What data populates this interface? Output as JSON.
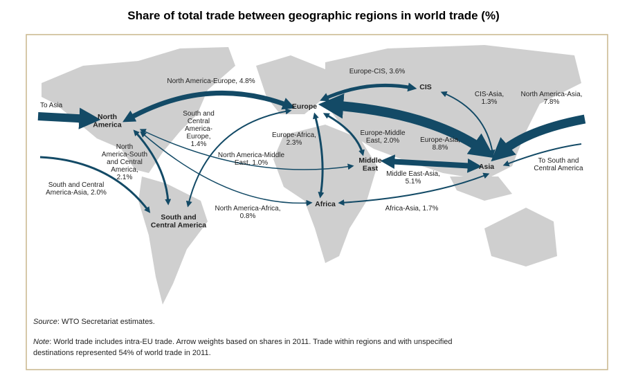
{
  "title": "Share of total trade between geographic regions in world trade (%)",
  "regions": [
    {
      "lines": [
        "North",
        "America"
      ]
    },
    {
      "lines": [
        "Europe"
      ]
    },
    {
      "lines": [
        "CIS"
      ]
    },
    {
      "lines": [
        "Middle",
        "East"
      ]
    },
    {
      "lines": [
        "Asia"
      ]
    },
    {
      "lines": [
        "Africa"
      ]
    },
    {
      "lines": [
        "South and",
        "Central America"
      ]
    }
  ],
  "flows": [
    {
      "lines": [
        "North America-Europe, 4.8%"
      ]
    },
    {
      "lines": [
        "To Asia"
      ]
    },
    {
      "lines": [
        "Europe-CIS, 3.6%"
      ]
    },
    {
      "lines": [
        "CIS-Asia,",
        "1.3%"
      ]
    },
    {
      "lines": [
        "North America-Asia,",
        "7.8%"
      ]
    },
    {
      "lines": [
        "South and",
        "Central",
        "America-",
        "Europe,",
        "1.4%"
      ]
    },
    {
      "lines": [
        "Europe-Africa,",
        "2.3%"
      ]
    },
    {
      "lines": [
        "Europe-Middle",
        "East, 2.0%"
      ]
    },
    {
      "lines": [
        "Europe-Asia,",
        "8.8%"
      ]
    },
    {
      "lines": [
        "North",
        "America-South",
        "and Central",
        "America,",
        "2.1%"
      ]
    },
    {
      "lines": [
        "North America-Middle",
        "East, 1.0%"
      ]
    },
    {
      "lines": [
        "To South and",
        "Central America"
      ]
    },
    {
      "lines": [
        "Middle East-Asia,",
        "5.1%"
      ]
    },
    {
      "lines": [
        "South and Central",
        "America-Asia, 2.0%"
      ]
    },
    {
      "lines": [
        "North America-Africa,",
        "0.8%"
      ]
    },
    {
      "lines": [
        "Africa-Asia, 1.7%"
      ]
    }
  ],
  "source": {
    "label": "Source",
    "text": ": WTO Secretariat estimates."
  },
  "note": {
    "label": "Note",
    "lines": [
      ": World trade includes intra-EU trade.  Arrow weights based on shares in 2011. Trade within regions and with unspecified",
      "destinations represented 54% of world trade in 2011."
    ]
  }
}
